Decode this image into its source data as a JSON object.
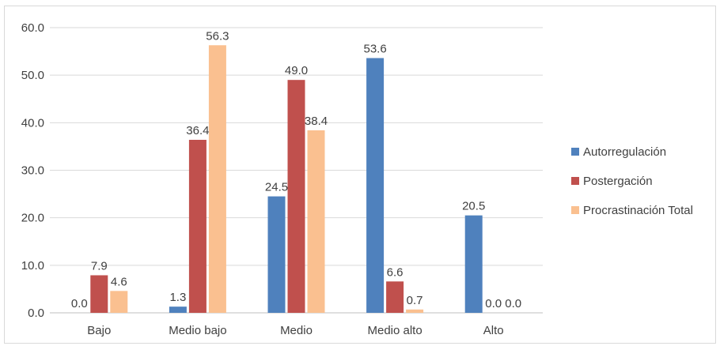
{
  "chart_data": {
    "type": "bar",
    "title": "",
    "xlabel": "",
    "ylabel": "",
    "categories": [
      "Bajo",
      "Medio bajo",
      "Medio",
      "Medio alto",
      "Alto"
    ],
    "series": [
      {
        "name": "Autorregulación",
        "color": "#4f81bd",
        "values": [
          0.0,
          1.3,
          24.5,
          53.6,
          20.5
        ]
      },
      {
        "name": "Postergación",
        "color": "#c0504d",
        "values": [
          7.9,
          36.4,
          49.0,
          6.6,
          0.0
        ]
      },
      {
        "name": "Procrastinación Total",
        "color": "#fac090",
        "values": [
          4.6,
          56.3,
          38.4,
          0.7,
          0.0
        ]
      }
    ],
    "data_labels": [
      [
        "0.0",
        "1.3",
        "24.5",
        "53.6",
        "20.5"
      ],
      [
        "7.9",
        "36.4",
        "49.0",
        "6.6",
        "0.0"
      ],
      [
        "4.6",
        "56.3",
        "38.4",
        "0.7",
        "0.0"
      ]
    ],
    "ylim": [
      0,
      60
    ],
    "yticks": [
      "0.0",
      "10.0",
      "20.0",
      "30.0",
      "40.0",
      "50.0",
      "60.0"
    ],
    "grid": true,
    "legend_position": "right"
  }
}
